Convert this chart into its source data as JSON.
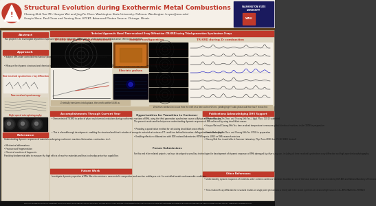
{
  "title": "Structural Evolution during Exothermic Metal Combustions",
  "authors_line1": "Choong-Shik Yoo (PI), Haoyan Wei and Jing-Yin Chen, Washington State University, Pullman, Washington (csyoo@wsu.edu)",
  "authors_line2": "Guoyin Shen, Paul Chow and Yuming Xiao, HPCAT, Advanced Photon Source, Chicago, Illinois",
  "technical_banner": "Technical Approach: Novel Time-resolved X-ray Diffraction (TR-XRD) using Third-generation Synchrotron X-rays",
  "abstract_title": "Abstract",
  "abstract_text": "This project is to investigate dynamic responses of reactive materials (RMs) and to understand shock/blast wave effects on materials.",
  "approach_title": "Approach",
  "approach_bullets": [
    "Subject RMs under controlled mechanical (plate impact) and thermal (pulse laser/electric heating) impacts",
    "Measure the dynamic structural and chemical changes in real-time, using time-resolved x-ray diffraction (TR-XRD), TR spectroscope and high-speed microscopy"
  ],
  "approach_extra": "Time-resolved synchrotron x-ray diffraction",
  "spectroscopy_label": "Time-resolved spectroscopy",
  "microscopy_label": "High-speed microphotography",
  "reference_title": "Relevance",
  "reference_text": "Understanding dynamic responses of materials undergoing exothermic reactions (detonation, combustion, etc.):",
  "reference_bullets": [
    "Mechanical deformations",
    "Fracture and Fragmentation",
    "Chemical reactions of fragments"
  ],
  "reference_extra": "Providing fundamental data to measure the high effects of reactive materials and thus to develop protective capabilities",
  "tr_xrd_phase_title": "TR-XRD during Zr phase transitions",
  "sample_config_title": "Sample configuration",
  "tr_xrd_comb_title": "TR-XRD during Zr combustion",
  "electric_pulses_title": "Electric pulses",
  "phase_caption": "Zr initially transforms into b-phase, then melts within 50-80 us",
  "combustion_caption": "Zirconium combustion occurs from the melt on a time scale of 0.5 ms, yielding high T cubic phase and then low T monoclinic",
  "accomplishments_title": "Accomplishments Through Current Year",
  "accomplishments_bullets": [
    "Demonstrated TR-XRD to probe of phase and chemical evolutions during exothermic reactions of RMs, using the third generation synchrotron source at Advanced Photon Source",
    "This is a breakthrough development, enabling the structural and kinetic studies of energetic materials at extreme P-T conditions behind detonation, deflagration, and combustions."
  ],
  "future_title": "Future Work",
  "future_text": "Investigate dynamic properties of RMs (like nitro mixtures, nano-metallic composites, and reactive multilayers, etc.) in controlled aerobic and anaerobic conditions.",
  "opportunities_title": "Opportunities for Transition to Customer",
  "opportunities_text": "The present results and techniques on understanding dynamic responses of RMs achieved by using shock/blast waves:",
  "opportunities_bullets": [
    "Providing a quantitative method for calculating shock/blast wave effects",
    "Enabling effective collaborations with DOE national laboratories (NTS/Sequoia, LLNL) or DHS research missions"
  ],
  "forum_title": "Forum Submissions",
  "forum_text": "For this and other related projects, we have developed several key technologies for development of dynamic responses of RMs damaged by other x-ray use, including of: time-resolved synchrotron x-ray diffraction and high-speed microphotography.",
  "publications_title": "Publications Acknowledging DHS Support",
  "publications_bullets": [
    "Bitnara Han, Jing-Yin Chen, and Choong-Shik Yoo, J. Appl. Phys. 110:13 submitted",
    "Haoyan Wei and Choong-Shik Yoo, time-resolved temperature to measure global kinetics of reactions inside (2009) in preparation",
    "Simon Chen, Jing-Yin Chen, and Choong-Shik Yoo (2012) in preparation",
    "Choong-Shik Yoo, issued talks at Cameron Laboratory, Phys.Trans.2010, See. P1-10 (2010) (invited)"
  ],
  "other_ref_title": "Other References",
  "other_ref_bullets": [
    "Understanding dynamic responses of materials under extreme conditions has been described as one of the basic materials research needs by DOF-BES and National Academy of Sciences",
    "Time-resolved X-ray diffraction for structural studies on single point phenomena: a timely aid in the recent synthesis at advanced light sources: LCL, APS, MAX-II, DL, PETRA III"
  ],
  "footer_text": "This project was supported by the U.S. Department of Homeland Security under Award No. 2012-DN-130-NF0001. The views and conclusions contained in this document are those of the authors and should not be interpreted as necessarily representing the official policies, either expressed or implied, of the U.S. Department of Homeland Security."
}
